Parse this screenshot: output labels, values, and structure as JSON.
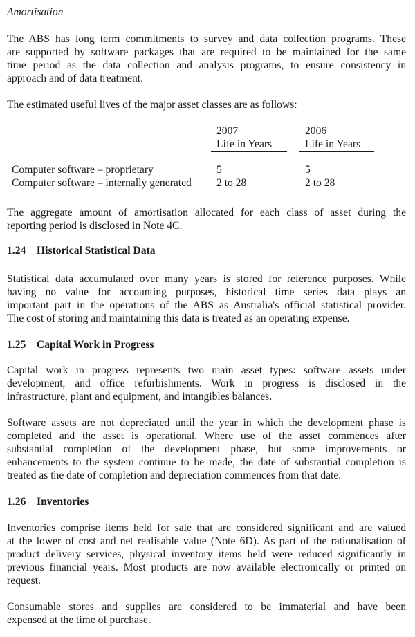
{
  "doc": {
    "title": "Amortisation",
    "p1": [
      "The ABS has long term commitments to survey and data collection programs.  These",
      "are supported by software packages that are required to be maintained for the same",
      "time period as the data collection and analysis programs, to ensure consistency in",
      "approach and of data treatment."
    ],
    "intro": "The estimated useful lives of the major asset classes are as follows:",
    "table": {
      "years": [
        "2007",
        "2006"
      ],
      "life_label_1": "Life in Years",
      "life_label_2": "Life in Years",
      "rows": [
        {
          "label": "Computer software – proprietary",
          "v2007": "5",
          "v2006": "5"
        },
        {
          "label": "Computer software – internally generated",
          "v2007": "2 to 28",
          "v2006": "2 to 28"
        }
      ]
    },
    "aggregate": [
      "The aggregate amount of amortisation allocated for each class of asset during the",
      "reporting period is disclosed in Note 4C."
    ],
    "h124": {
      "num": "1.24",
      "title": "Historical Statistical Data"
    },
    "p124": [
      "Statistical data accumulated over many years is stored for reference purposes.  While",
      "having no value for accounting purposes, historical time series data plays an",
      "important part in the operations of the ABS as Australia's official statistical provider.",
      "The cost of storing and maintaining this data is treated as an operating expense."
    ],
    "h125": {
      "num": "1.25",
      "title": "Capital Work in Progress"
    },
    "p125a": [
      "Capital work in progress represents two main asset types: software assets under",
      "development, and office refurbishments. Work in progress is disclosed in the",
      "infrastructure, plant and equipment, and intangibles balances."
    ],
    "p125b": [
      "Software assets are not depreciated until the year in which the development phase is",
      "completed and the asset is operational.  Where use of the asset commences after",
      "substantial completion of the development phase, but some improvements or",
      "enhancements to the system continue to be made, the date of substantial completion is",
      "treated as the date of completion and depreciation commences from that date."
    ],
    "h126": {
      "num": "1.26",
      "title": "Inventories"
    },
    "p126a": [
      "Inventories comprise items held for sale that are considered significant and are valued",
      "at the lower of cost and net realisable value (Note 6D). As part of the rationalisation of",
      "product delivery services, physical inventory items held were reduced significantly in",
      "previous financial years. Most products are now available electronically or printed on",
      "request."
    ],
    "p126b": [
      "Consumable stores and supplies are considered to be immaterial and have been",
      "expensed at the time of purchase."
    ],
    "text_color": "#1b1b1b"
  }
}
